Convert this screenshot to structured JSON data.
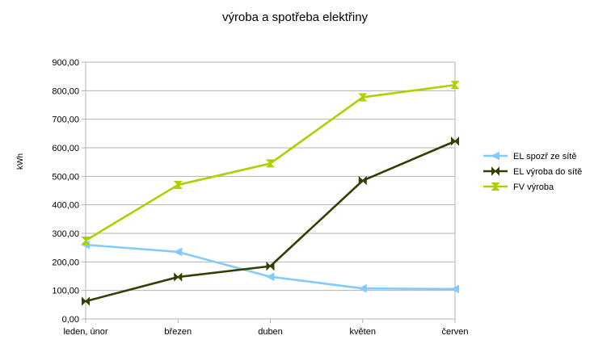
{
  "chart_data": {
    "type": "line",
    "title": "výroba a spotřeba elektřiny",
    "xlabel": "",
    "ylabel": "kWh",
    "categories": [
      "leden, únor",
      "březen",
      "duben",
      "květen",
      "červen"
    ],
    "ylim": [
      0,
      900
    ],
    "yticks": [
      "0,00",
      "100,00",
      "200,00",
      "300,00",
      "400,00",
      "500,00",
      "600,00",
      "700,00",
      "800,00",
      "900,00"
    ],
    "grid": true,
    "legend_position": "right",
    "series": [
      {
        "name": "EL spozř ze sítě",
        "color": "#83caff",
        "marker": "triangle-left",
        "values": [
          260,
          235,
          148,
          107,
          105
        ]
      },
      {
        "name": "EL výroba do sítě",
        "color": "#314004",
        "marker": "bowtie",
        "values": [
          62,
          147,
          185,
          485,
          623
        ]
      },
      {
        "name": "FV výroba",
        "color": "#aecf00",
        "marker": "hourglass",
        "values": [
          275,
          470,
          545,
          777,
          820
        ]
      }
    ]
  }
}
